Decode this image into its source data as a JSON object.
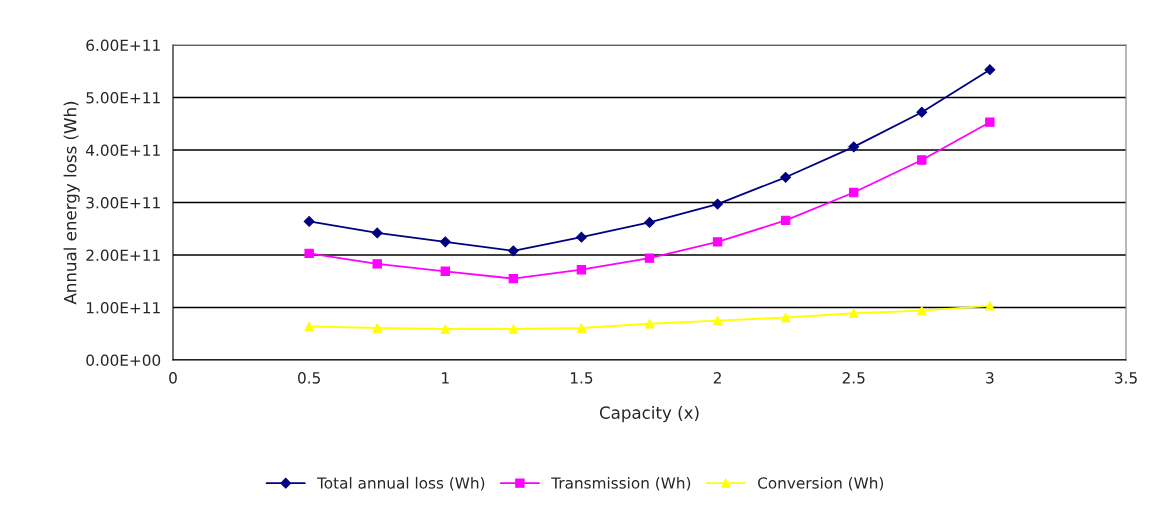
{
  "chart_data": {
    "type": "line",
    "xlabel": "Capacity (x)",
    "ylabel": "Annual energy loss (Wh)",
    "x": [
      0.5,
      0.75,
      1,
      1.25,
      1.5,
      1.75,
      2,
      2.25,
      2.5,
      2.75,
      3
    ],
    "series": [
      {
        "name": "Total annual loss (Wh)",
        "color": "#000080",
        "marker": "diamond",
        "values": [
          264000000000.0,
          242000000000.0,
          225000000000.0,
          208000000000.0,
          234000000000.0,
          262000000000.0,
          297000000000.0,
          348000000000.0,
          406000000000.0,
          472000000000.0,
          553000000000.0
        ]
      },
      {
        "name": "Transmission (Wh)",
        "color": "#ff00ff",
        "marker": "square",
        "values": [
          203000000000.0,
          183000000000.0,
          169000000000.0,
          155000000000.0,
          172000000000.0,
          194000000000.0,
          225000000000.0,
          266000000000.0,
          319000000000.0,
          381000000000.0,
          453000000000.0
        ]
      },
      {
        "name": "Conversion (Wh)",
        "color": "#ffff00",
        "marker": "triangle",
        "values": [
          64000000000.0,
          61000000000.0,
          59000000000.0,
          59000000000.0,
          61000000000.0,
          69000000000.0,
          75000000000.0,
          81000000000.0,
          89000000000.0,
          94000000000.0,
          103000000000.0
        ]
      }
    ],
    "xlim": [
      0,
      3.5
    ],
    "xticks": [
      0,
      0.5,
      1,
      1.5,
      2,
      2.5,
      3,
      3.5
    ],
    "ylim": [
      0,
      600000000000.0
    ],
    "yticks": [
      {
        "value": 0,
        "label": "0.00E+00"
      },
      {
        "value": 100000000000.0,
        "label": "1.00E+11"
      },
      {
        "value": 200000000000.0,
        "label": "2.00E+11"
      },
      {
        "value": 300000000000.0,
        "label": "3.00E+11"
      },
      {
        "value": 400000000000.0,
        "label": "4.00E+11"
      },
      {
        "value": 500000000000.0,
        "label": "5.00E+11"
      },
      {
        "value": 600000000000.0,
        "label": "6.00E+11"
      }
    ],
    "grid": "y",
    "legend": "bottom"
  }
}
